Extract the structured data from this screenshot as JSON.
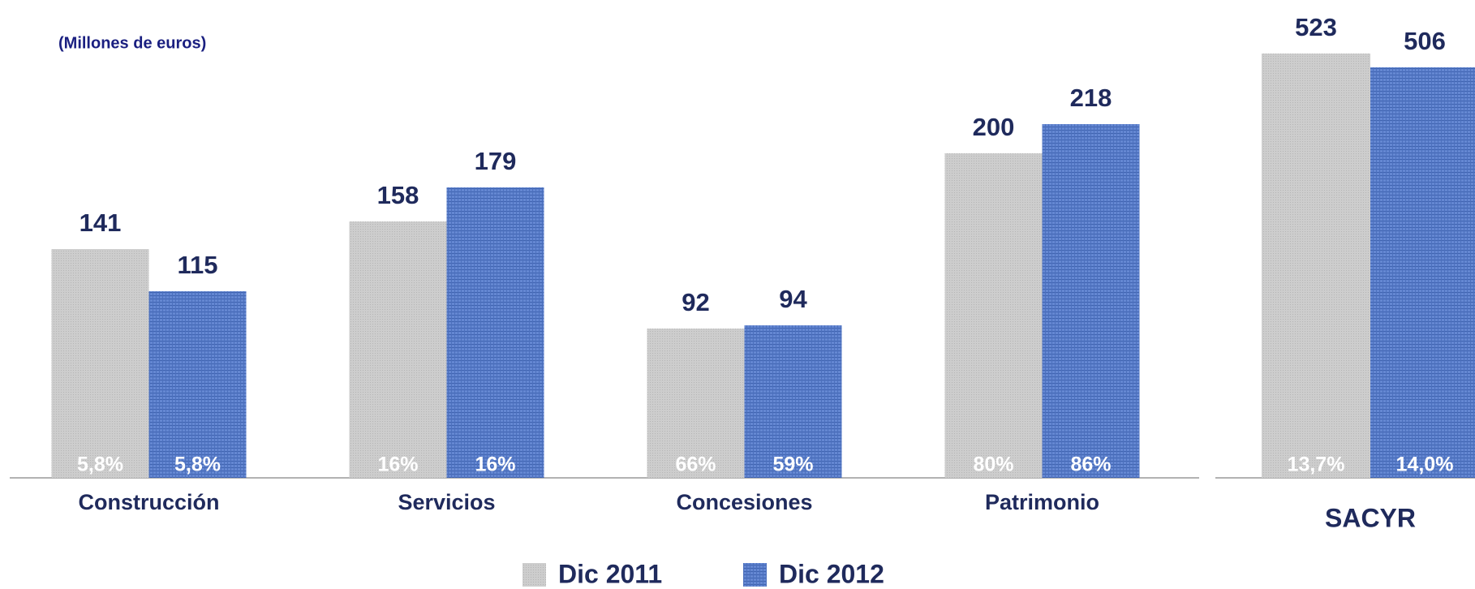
{
  "chart_data": [
    {
      "type": "bar",
      "subtitle": "(Millones de euros)",
      "categories": [
        "Construcción",
        "Servicios",
        "Concesiones",
        "Patrimonio"
      ],
      "ylim": [
        0,
        240
      ],
      "series": [
        {
          "name": "Dic 2011",
          "color": "#c8c8c8",
          "values": [
            141,
            158,
            92,
            200
          ],
          "margins": [
            "5,8%",
            "16%",
            "66%",
            "80%"
          ]
        },
        {
          "name": "Dic 2012",
          "color": "#5b7fcb",
          "values": [
            115,
            179,
            94,
            218
          ],
          "margins": [
            "5,8%",
            "16%",
            "59%",
            "86%"
          ]
        }
      ]
    },
    {
      "type": "bar",
      "categories": [
        "SACYR"
      ],
      "ylim": [
        0,
        560
      ],
      "series": [
        {
          "name": "Dic 2011",
          "color": "#c8c8c8",
          "values": [
            523
          ],
          "margins": [
            "13,7%"
          ]
        },
        {
          "name": "Dic 2012",
          "color": "#5b7fcb",
          "values": [
            506
          ],
          "margins": [
            "14,0%"
          ]
        }
      ]
    }
  ]
}
